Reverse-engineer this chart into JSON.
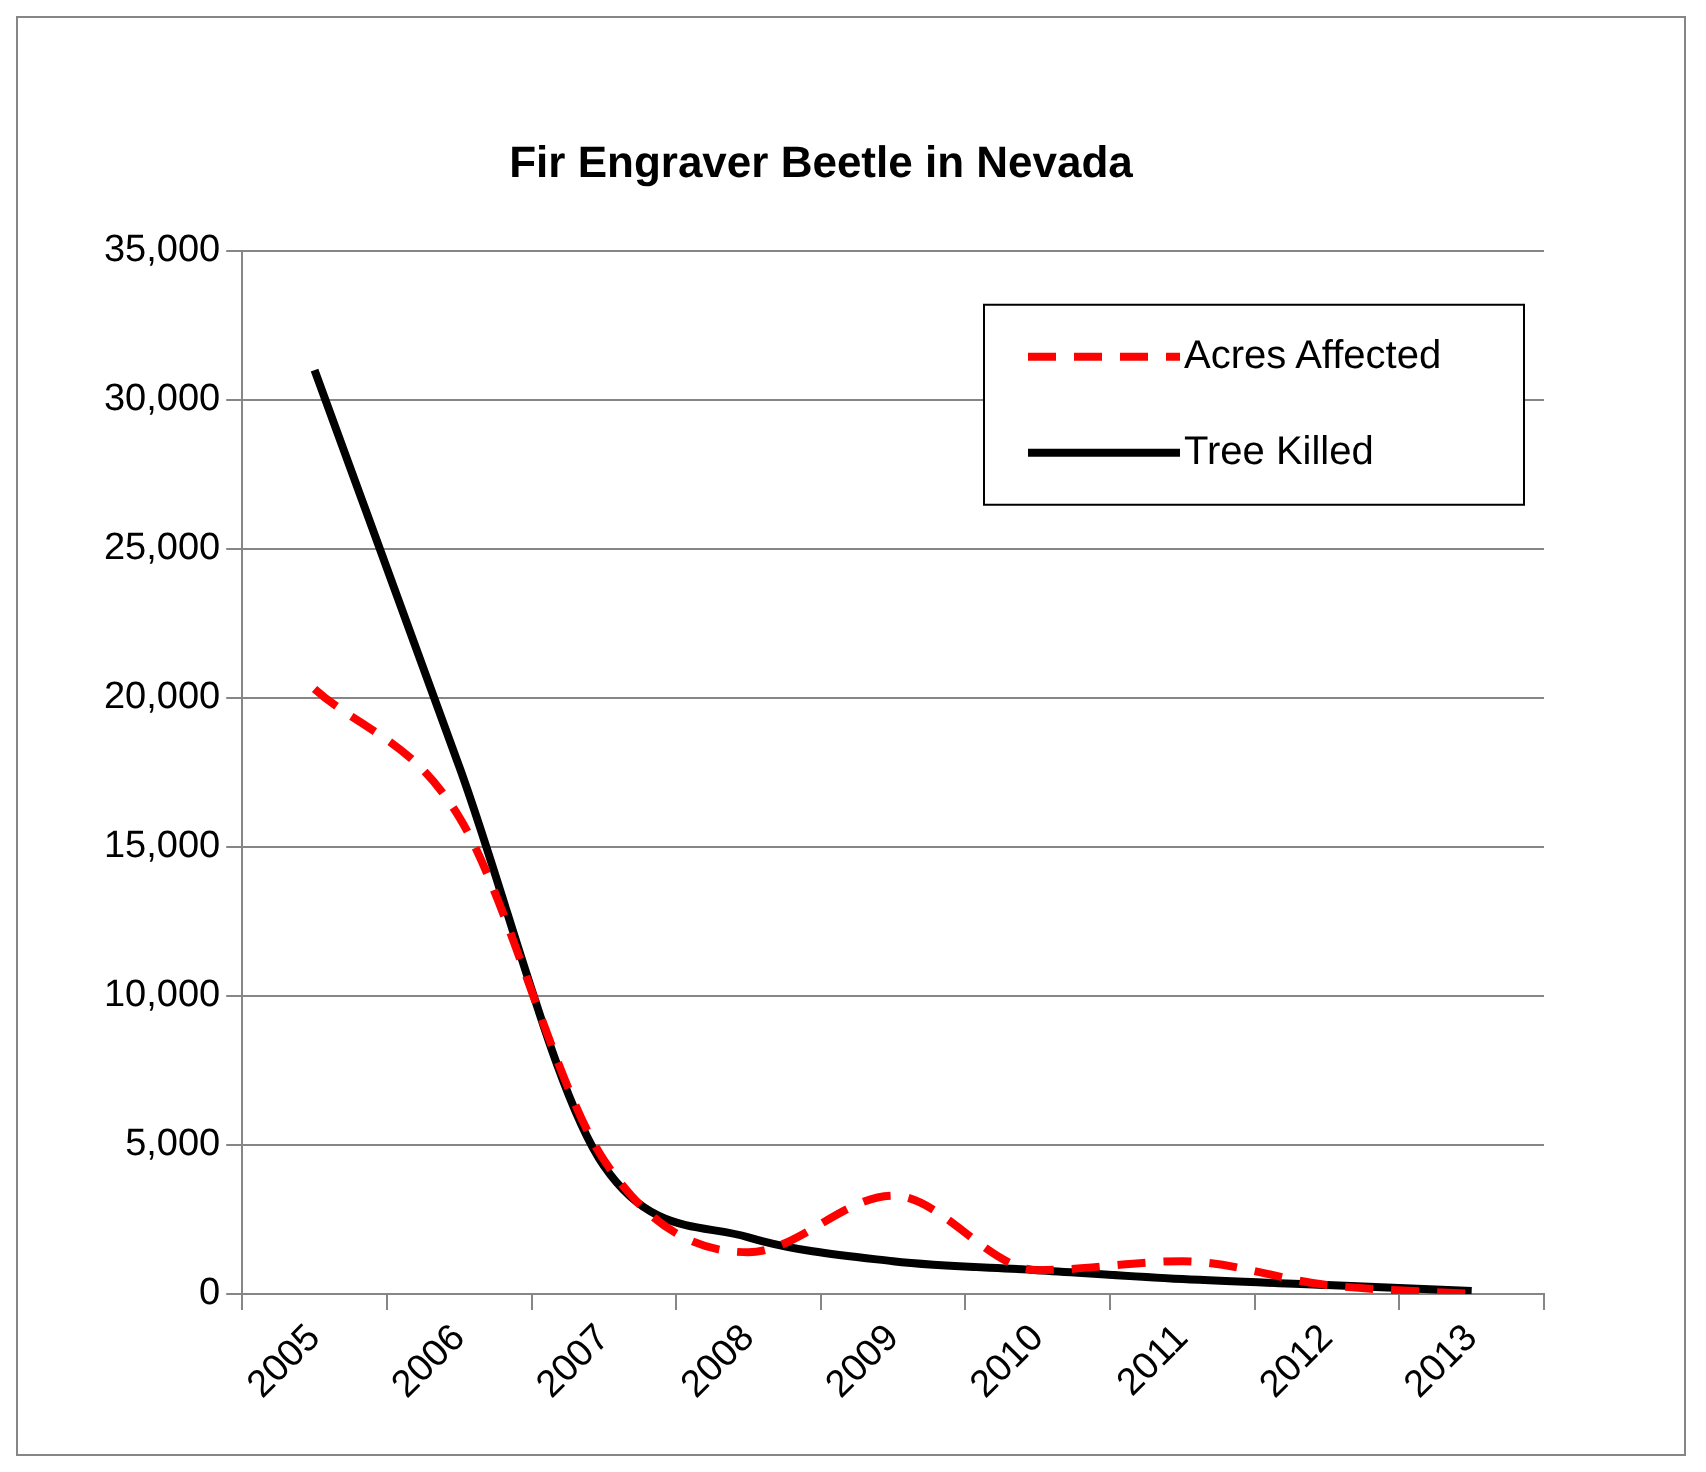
{
  "chart_data": {
    "type": "line",
    "title": "Fir Engraver Beetle in Nevada",
    "categories": [
      "2005",
      "2006",
      "2007",
      "2008",
      "2009",
      "2010",
      "2011",
      "2012",
      "2013"
    ],
    "series": [
      {
        "name": "Acres Affected",
        "color": "#ff0000",
        "line_style": "dashed",
        "values": [
          20300,
          16000,
          4500,
          1400,
          3300,
          800,
          1100,
          300,
          0
        ]
      },
      {
        "name": "Tree Killed",
        "color": "#000000",
        "line_style": "solid",
        "values": [
          31000,
          17700,
          4300,
          1900,
          1100,
          800,
          500,
          300,
          100
        ]
      }
    ],
    "ylim": [
      0,
      35000
    ],
    "yticks": [
      0,
      {
        "value": 5000,
        "label": "5,000"
      },
      {
        "value": 10000,
        "label": "10,000"
      },
      {
        "value": 15000,
        "label": "15,000"
      },
      {
        "value": 20000,
        "label": "20,000"
      },
      {
        "value": 25000,
        "label": "25,000"
      },
      {
        "value": 30000,
        "label": "30,000"
      },
      {
        "value": 35000,
        "label": "35,000"
      }
    ],
    "grid": "y",
    "legend": "top right",
    "marker": "none"
  }
}
